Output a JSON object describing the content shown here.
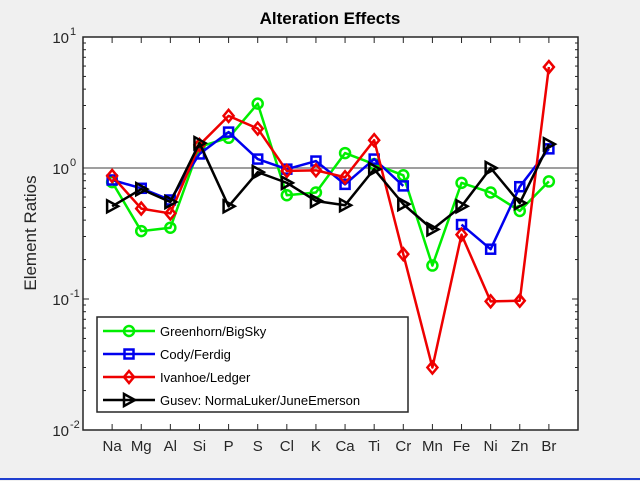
{
  "chart_data": {
    "type": "line",
    "title": "Alteration Effects",
    "xlabel": "",
    "ylabel": "Element Ratios",
    "yscale": "log",
    "ylim": [
      0.01,
      10
    ],
    "ytick_labels": [
      {
        "base": "10",
        "exp": "-2"
      },
      {
        "base": "10",
        "exp": "-1"
      },
      {
        "base": "10",
        "exp": "0"
      },
      {
        "base": "10",
        "exp": "1"
      }
    ],
    "categories": [
      "Na",
      "Mg",
      "Al",
      "Si",
      "P",
      "S",
      "Cl",
      "K",
      "Ca",
      "Ti",
      "Cr",
      "Mn",
      "Fe",
      "Ni",
      "Zn",
      "Br"
    ],
    "reference_line": 1,
    "legend_position": "bottom-left",
    "grid": false,
    "series": [
      {
        "name": "Greenhorn/BigSky",
        "color": "#00ee00",
        "marker": "circle",
        "values": [
          0.78,
          0.33,
          0.35,
          1.45,
          1.7,
          3.1,
          0.62,
          0.65,
          1.3,
          1.07,
          0.88,
          0.18,
          0.77,
          0.65,
          0.47,
          0.79
        ]
      },
      {
        "name": "Cody/Ferdig",
        "color": "#0000ee",
        "marker": "square",
        "values": [
          0.81,
          0.7,
          0.57,
          1.28,
          1.88,
          1.17,
          0.98,
          1.13,
          0.75,
          1.17,
          0.73,
          null,
          0.37,
          0.24,
          0.72,
          1.4
        ]
      },
      {
        "name": "Ivanhoe/Ledger",
        "color": "#ee0000",
        "marker": "diamond",
        "values": [
          0.87,
          0.49,
          0.45,
          1.5,
          2.5,
          2.0,
          0.95,
          0.96,
          0.85,
          1.63,
          0.22,
          0.03,
          0.31,
          0.096,
          0.097,
          5.9
        ]
      },
      {
        "name": "Gusev: NormaLuker/JuneEmerson",
        "color": "#000000",
        "marker": "triangle-right",
        "values": [
          0.51,
          0.69,
          0.55,
          1.55,
          0.51,
          0.93,
          0.77,
          0.56,
          0.52,
          0.98,
          0.53,
          0.34,
          0.51,
          1.0,
          0.54,
          1.52
        ]
      }
    ]
  }
}
